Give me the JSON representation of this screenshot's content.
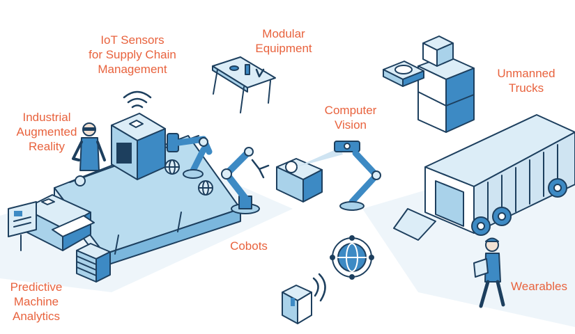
{
  "colors": {
    "label": "#e8623d",
    "outline": "#1d3f5e",
    "fill_light": "#dcedf7",
    "fill_mid": "#a9d2ea",
    "fill_dark": "#3d8ac4",
    "ground": "#eaf3f9"
  },
  "labels": {
    "iot": [
      "IoT Sensors",
      "for Supply Chain",
      "Management"
    ],
    "modular": [
      "Modular",
      "Equipment"
    ],
    "unmanned": [
      "Unmanned",
      "Trucks"
    ],
    "industrial_ar": [
      "Industrial",
      "Augmented",
      "Reality"
    ],
    "computer_vision": [
      "Computer",
      "Vision"
    ],
    "cobots": [
      "Cobots"
    ],
    "wearables": [
      "Wearables"
    ],
    "predictive": [
      "Predictive",
      "Machine",
      "Analytics"
    ]
  },
  "icons": [
    "wifi-icon",
    "robot-arm-icon",
    "globe-icon",
    "camera-icon",
    "truck-icon",
    "worker-icon",
    "package-icon",
    "tablet-icon"
  ]
}
